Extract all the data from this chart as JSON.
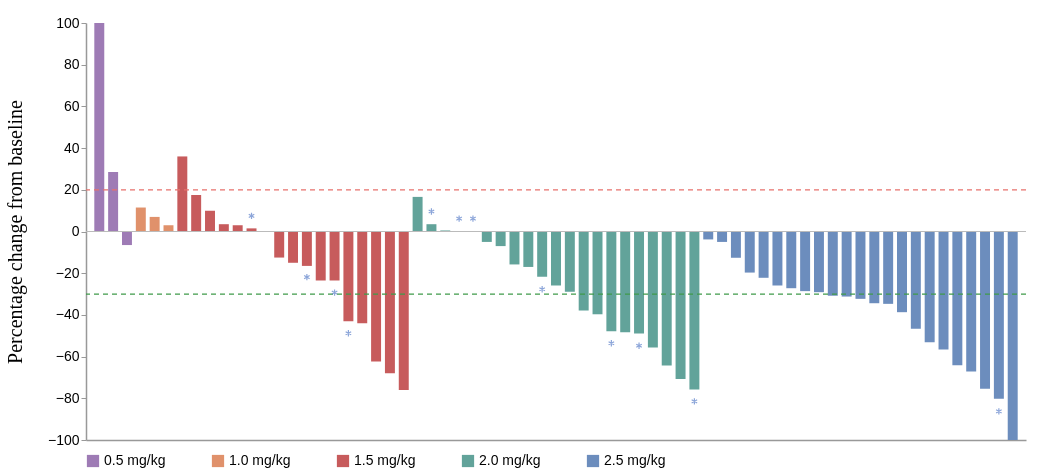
{
  "chart_data": {
    "type": "bar",
    "ylabel": "Percentage change from baseline",
    "categories": [
      null,
      null,
      null,
      null,
      null,
      null,
      null,
      null,
      null,
      null,
      null,
      null,
      null,
      null,
      null,
      null,
      null,
      null,
      null,
      null,
      null,
      null,
      null,
      null,
      null,
      null,
      null,
      null,
      null,
      null,
      null,
      null,
      null,
      null,
      null,
      null,
      null,
      null,
      null,
      null,
      null,
      null,
      null,
      null,
      null,
      null,
      null,
      null,
      null,
      null,
      null,
      null,
      null,
      null,
      null,
      null,
      null,
      null,
      null,
      null,
      null,
      null,
      null,
      null,
      null,
      null,
      null
    ],
    "series": [
      {
        "name": "0.5 mg/kg",
        "color": "#9e7bb5",
        "values": [
          100,
          28.5,
          -6.5,
          null,
          null,
          null,
          null,
          null,
          null,
          null,
          null,
          null,
          null,
          null,
          null,
          null,
          null,
          null,
          null,
          null,
          null,
          null,
          null,
          null,
          null,
          null,
          null,
          null,
          null,
          null,
          null,
          null,
          null,
          null,
          null,
          null,
          null,
          null,
          null,
          null,
          null,
          null,
          null,
          null,
          null,
          null,
          null,
          null,
          null,
          null,
          null,
          null,
          null,
          null,
          null,
          null,
          null,
          null,
          null,
          null,
          null,
          null,
          null,
          null,
          null,
          null,
          null
        ]
      },
      {
        "name": "1.0 mg/kg",
        "color": "#e0916b",
        "values": [
          null,
          null,
          null,
          11.5,
          7,
          3,
          null,
          null,
          null,
          null,
          null,
          null,
          null,
          null,
          null,
          null,
          null,
          null,
          null,
          null,
          null,
          null,
          null,
          null,
          null,
          null,
          null,
          null,
          null,
          null,
          null,
          null,
          null,
          null,
          null,
          null,
          null,
          null,
          null,
          null,
          null,
          null,
          null,
          null,
          null,
          null,
          null,
          null,
          null,
          null,
          null,
          null,
          null,
          null,
          null,
          null,
          null,
          null,
          null,
          null,
          null,
          null,
          null,
          null,
          null,
          null,
          null
        ]
      },
      {
        "name": "1.5 mg/kg",
        "color": "#c75b5c",
        "values": [
          null,
          null,
          null,
          null,
          null,
          null,
          36,
          17.5,
          10,
          3.5,
          3,
          1.5,
          0,
          -12.5,
          -15,
          -16.5,
          -23.5,
          -23.5,
          -43,
          -44,
          -62.3,
          -68,
          -76,
          null,
          null,
          null,
          null,
          null,
          null,
          null,
          null,
          null,
          null,
          null,
          null,
          null,
          null,
          null,
          null,
          null,
          null,
          null,
          null,
          null,
          null,
          null,
          null,
          null,
          null,
          null,
          null,
          null,
          null,
          null,
          null,
          null,
          null,
          null,
          null,
          null,
          null,
          null,
          null,
          null,
          null,
          null,
          null
        ]
      },
      {
        "name": "2.0 mg/kg",
        "color": "#62a39a",
        "values": [
          null,
          null,
          null,
          null,
          null,
          null,
          null,
          null,
          null,
          null,
          null,
          null,
          null,
          null,
          null,
          null,
          null,
          null,
          null,
          null,
          null,
          null,
          null,
          16.6,
          3.5,
          0.5,
          0,
          0,
          -5,
          -7,
          -15.8,
          -17,
          -21.7,
          -25.9,
          -28.9,
          -37.9,
          -39.7,
          -47.8,
          -48.3,
          -48.9,
          -55.6,
          -64.3,
          -70.8,
          -75.8,
          null,
          null,
          null,
          null,
          null,
          null,
          null,
          null,
          null,
          null,
          null,
          null,
          null,
          null,
          null,
          null,
          null,
          null,
          null,
          null,
          null,
          null,
          null
        ]
      },
      {
        "name": "2.5 mg/kg",
        "color": "#6c8dbd",
        "values": [
          null,
          null,
          null,
          null,
          null,
          null,
          null,
          null,
          null,
          null,
          null,
          null,
          null,
          null,
          null,
          null,
          null,
          null,
          null,
          null,
          null,
          null,
          null,
          null,
          null,
          null,
          null,
          null,
          null,
          null,
          null,
          null,
          null,
          null,
          null,
          null,
          null,
          null,
          null,
          null,
          null,
          null,
          null,
          null,
          -3.8,
          -5,
          -12.6,
          -19.7,
          -22.2,
          -25.9,
          -27.2,
          -28.6,
          -29.1,
          -30.8,
          -31.2,
          -32.3,
          -34.4,
          -34.7,
          -38.7,
          -46.7,
          -53.1,
          -56.6,
          -64.1,
          -67.1,
          -75.4,
          -80.2,
          -100
        ]
      },
      {
        "type": "scatter",
        "marker": "cross",
        "color": "#5b7fc9",
        "values": [
          null,
          null,
          null,
          null,
          null,
          null,
          null,
          null,
          null,
          null,
          null,
          7.5,
          null,
          null,
          null,
          -21.9,
          null,
          -29.3,
          -48.8,
          null,
          null,
          null,
          null,
          null,
          9.6,
          null,
          6.2,
          6.2,
          null,
          null,
          null,
          null,
          -27.7,
          null,
          null,
          null,
          null,
          -53.6,
          null,
          -54.8,
          null,
          null,
          null,
          -81.5,
          null,
          null,
          null,
          null,
          null,
          null,
          null,
          null,
          null,
          null,
          null,
          null,
          null,
          null,
          null,
          null,
          null,
          null,
          null,
          null,
          null,
          -86.3,
          null
        ]
      }
    ],
    "ylim": [
      -100,
      100
    ],
    "yticks": [
      -100,
      -80,
      -60,
      -40,
      -20,
      0,
      20,
      40,
      60,
      80,
      100
    ],
    "ref_lines": [
      {
        "axis": "y",
        "value": 0,
        "color": "#bbbbbb",
        "line_style": "solid"
      },
      {
        "axis": "y",
        "value": 20,
        "color": "#e8716c",
        "line_style": "dashed"
      },
      {
        "axis": "y",
        "value": -30,
        "color": "#3f9a4a",
        "line_style": "dashed"
      }
    ],
    "tick_labels": "y",
    "grid": false,
    "legend": "bottom"
  }
}
